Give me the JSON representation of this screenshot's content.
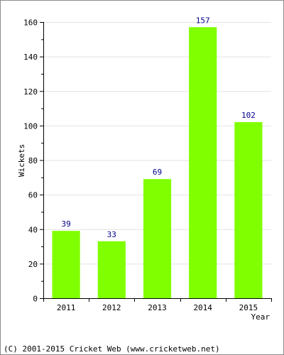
{
  "chart_data": {
    "type": "bar",
    "categories": [
      "2011",
      "2012",
      "2013",
      "2014",
      "2015"
    ],
    "values": [
      39,
      33,
      69,
      157,
      102
    ],
    "data_labels": [
      "39",
      "33",
      "69",
      "157",
      "102"
    ],
    "title": "",
    "xlabel": "Year",
    "ylabel": "Wickets",
    "ylim": [
      0,
      160
    ],
    "yticks": [
      "0",
      "20",
      "40",
      "60",
      "80",
      "100",
      "120",
      "140",
      "160"
    ],
    "grid": true,
    "bar_color": "#80ff00",
    "label_color": "#00008b"
  },
  "footer": {
    "copyright": "(C) 2001-2015 Cricket Web (www.cricketweb.net)"
  }
}
